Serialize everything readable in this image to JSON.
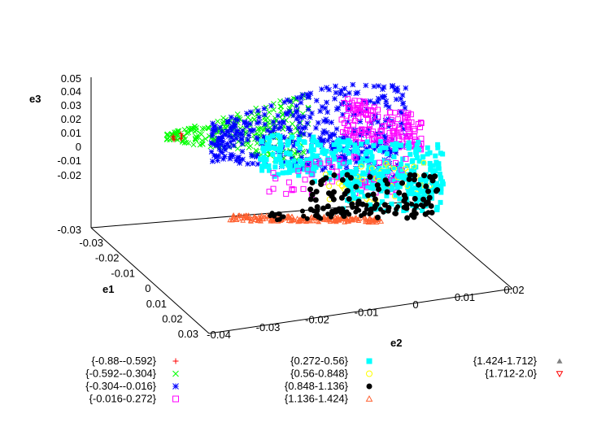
{
  "chart_data": {
    "type": "scatter",
    "title": "",
    "axes": {
      "e1": {
        "label": "e1",
        "range": [
          -0.04,
          0.03
        ],
        "ticks": [
          "-0.03",
          "-0.02",
          "-0.01",
          "0",
          "0.01",
          "0.02",
          "0.03"
        ]
      },
      "e2": {
        "label": "e2",
        "range": [
          -0.04,
          0.02
        ],
        "ticks": [
          "-0.04",
          "-0.03",
          "-0.02",
          "-0.01",
          "0",
          "0.01",
          "0.02"
        ]
      },
      "e3": {
        "label": "e3",
        "range": [
          -0.03,
          0.05
        ],
        "ticks": [
          "0.05",
          "0.04",
          "0.03",
          "0.02",
          "0.01",
          "0",
          "-0.01",
          "-0.02",
          "-0.03"
        ]
      }
    },
    "grid": false,
    "legend_placement": "bottom",
    "series": [
      {
        "name": "{-0.88--0.592}",
        "marker": "plus",
        "color": "#ff0000"
      },
      {
        "name": "{-0.592--0.304}",
        "marker": "cross",
        "color": "#00ff00"
      },
      {
        "name": "{-0.304--0.016}",
        "marker": "star",
        "color": "#0000ff"
      },
      {
        "name": "{-0.016-0.272}",
        "marker": "open-square",
        "color": "#ff00ff"
      },
      {
        "name": "{0.272-0.56}",
        "marker": "filled-square",
        "color": "#00ffff"
      },
      {
        "name": "{0.56-0.848}",
        "marker": "open-circle",
        "color": "#ffff00"
      },
      {
        "name": "{0.848-1.136}",
        "marker": "filled-circle",
        "color": "#000000"
      },
      {
        "name": "{1.136-1.424}",
        "marker": "open-triangle",
        "color": "#ff6030"
      },
      {
        "name": "{1.424-1.712}",
        "marker": "filled-triangle",
        "color": "#808080"
      },
      {
        "name": "{1.712-2.0}",
        "marker": "open-triangle-down",
        "color": "#ff0000"
      }
    ]
  }
}
